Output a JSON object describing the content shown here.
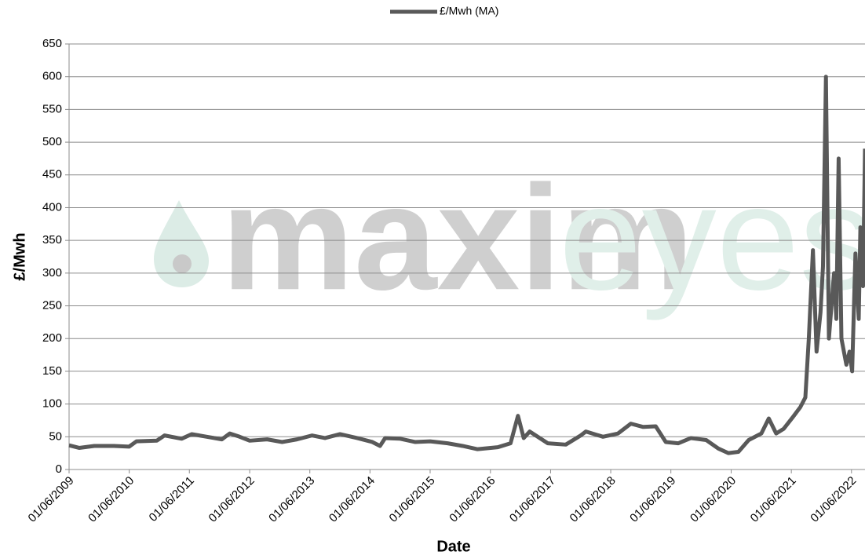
{
  "chart_data": {
    "type": "line",
    "legend": "top",
    "watermark": [
      "maxim",
      "eyes"
    ],
    "xlabel": "Date",
    "ylabel": "£/Mwh",
    "xlim": [
      "01/06/2009",
      "22/08/2022"
    ],
    "xticks": [
      "01/06/2009",
      "01/06/2010",
      "01/06/2011",
      "01/06/2012",
      "01/06/2013",
      "01/06/2014",
      "01/06/2015",
      "01/06/2016",
      "01/06/2017",
      "01/06/2018",
      "01/06/2019",
      "01/06/2020",
      "01/06/2021",
      "01/06/2022"
    ],
    "ylim": [
      0,
      650
    ],
    "yticks": [
      0,
      50,
      100,
      150,
      200,
      250,
      300,
      350,
      400,
      450,
      500,
      550,
      600,
      650
    ],
    "grid": true,
    "x": [
      "01/06/2009",
      "01/08/2009",
      "01/11/2009",
      "01/03/2010",
      "01/06/2010",
      "15/07/2010",
      "15/11/2010",
      "01/01/2011",
      "15/04/2011",
      "15/06/2011",
      "15/09/2011",
      "15/12/2011",
      "01/02/2012",
      "01/04/2012",
      "01/06/2012",
      "15/09/2012",
      "15/12/2012",
      "15/03/2013",
      "15/06/2013",
      "01/09/2013",
      "01/12/2013",
      "15/03/2014",
      "15/06/2014",
      "01/08/2014",
      "01/09/2014",
      "01/12/2014",
      "01/03/2015",
      "01/06/2015",
      "15/09/2015",
      "15/12/2015",
      "15/03/2016",
      "15/07/2016",
      "01/10/2016",
      "15/11/2016",
      "20/12/2016",
      "25/01/2017",
      "15/05/2017",
      "01/09/2017",
      "01/12/2017",
      "01/01/2018",
      "15/04/2018",
      "15/07/2018",
      "01/10/2018",
      "15/12/2018",
      "01/03/2019",
      "01/05/2019",
      "15/07/2019",
      "01/10/2019",
      "01/01/2020",
      "15/03/2020",
      "15/05/2020",
      "15/07/2020",
      "15/09/2020",
      "01/12/2020",
      "15/01/2021",
      "01/03/2021",
      "15/04/2021",
      "10/06/2021",
      "25/07/2021",
      "25/08/2021",
      "15/09/2021",
      "10/10/2021",
      "01/11/2021",
      "25/11/2021",
      "10/12/2021",
      "28/12/2021",
      "15/01/2022",
      "15/02/2022",
      "01/03/2022",
      "15/03/2022",
      "01/04/2022",
      "01/05/2022",
      "20/05/2022",
      "05/06/2022",
      "25/06/2022",
      "15/07/2022",
      "25/07/2022",
      "10/08/2022",
      "22/08/2022"
    ],
    "series": [
      {
        "name": "£/Mwh (MA)",
        "color": "#595959",
        "values": [
          37,
          33,
          36,
          36,
          35,
          43,
          44,
          52,
          47,
          54,
          50,
          46,
          55,
          50,
          44,
          46,
          42,
          46,
          52,
          48,
          54,
          48,
          42,
          36,
          48,
          47,
          42,
          43,
          40,
          36,
          31,
          34,
          40,
          82,
          48,
          58,
          40,
          38,
          52,
          58,
          50,
          55,
          70,
          65,
          66,
          42,
          40,
          48,
          45,
          32,
          25,
          27,
          45,
          55,
          78,
          55,
          62,
          80,
          95,
          110,
          200,
          335,
          180,
          240,
          310,
          600,
          200,
          300,
          230,
          475,
          200,
          160,
          180,
          150,
          330,
          230,
          370,
          280,
          490
        ]
      }
    ]
  }
}
